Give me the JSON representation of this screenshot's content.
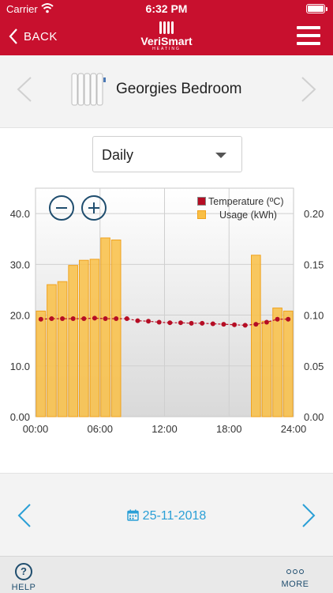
{
  "status_bar": {
    "carrier": "Carrier",
    "time": "6:32 PM"
  },
  "nav": {
    "back_label": "BACK",
    "logo_text": "VeriSmart",
    "logo_subtext": "HEATING"
  },
  "device": {
    "name": "Georgies Bedroom"
  },
  "period": {
    "selected": "Daily"
  },
  "date": {
    "value": "25-11-2018"
  },
  "tabs": {
    "help_label": "HELP",
    "help_symbol": "?",
    "more_label": "MORE"
  },
  "colors": {
    "brand_red": "#c8102e",
    "usage_fill": "#f9bf45",
    "usage_stroke": "#f0a21e",
    "temp_line": "#b50d24",
    "accent_blue": "#2a9fd6",
    "dark_blue": "#1f4d6e"
  },
  "chart_data": {
    "type": "bar",
    "legend": [
      "Temperature (ºC)",
      "Usage (kWh)"
    ],
    "legend_position": "top-right",
    "x_ticks": [
      "00:00",
      "06:00",
      "12:00",
      "18:00",
      "24:00"
    ],
    "y_left_ticks": [
      "0.00",
      "10.0",
      "20.0",
      "30.0",
      "40.0"
    ],
    "y_right_ticks": [
      "0.00",
      "0.05",
      "0.10",
      "0.15",
      "0.20"
    ],
    "y_left_lim": [
      0,
      45
    ],
    "y_right_lim": [
      0,
      0.225
    ],
    "x_lim": [
      0,
      24
    ],
    "grid": true,
    "series": [
      {
        "name": "Usage (kWh)",
        "axis": "right",
        "hours": [
          0,
          1,
          2,
          3,
          4,
          5,
          6,
          7,
          8,
          9,
          10,
          11,
          12,
          13,
          14,
          15,
          16,
          17,
          18,
          19,
          20,
          21,
          22,
          23
        ],
        "values": [
          0.104,
          0.13,
          0.133,
          0.149,
          0.154,
          0.155,
          0.176,
          0.174,
          0,
          0,
          0,
          0,
          0,
          0,
          0,
          0,
          0,
          0,
          0,
          0,
          0.159,
          0.094,
          0.107,
          0.104
        ]
      },
      {
        "name": "Temperature (ºC)",
        "axis": "left",
        "hours": [
          0.5,
          1.5,
          2.5,
          3.5,
          4.5,
          5.5,
          6.5,
          7.5,
          8.5,
          9.5,
          10.5,
          11.5,
          12.5,
          13.5,
          14.5,
          15.5,
          16.5,
          17.5,
          18.5,
          19.5,
          20.5,
          21.5,
          22.5,
          23.5
        ],
        "values": [
          19.2,
          19.3,
          19.3,
          19.3,
          19.3,
          19.4,
          19.3,
          19.3,
          19.3,
          18.9,
          18.8,
          18.6,
          18.5,
          18.5,
          18.4,
          18.4,
          18.3,
          18.2,
          18.1,
          18.0,
          18.2,
          18.6,
          19.2,
          19.2
        ]
      }
    ]
  }
}
